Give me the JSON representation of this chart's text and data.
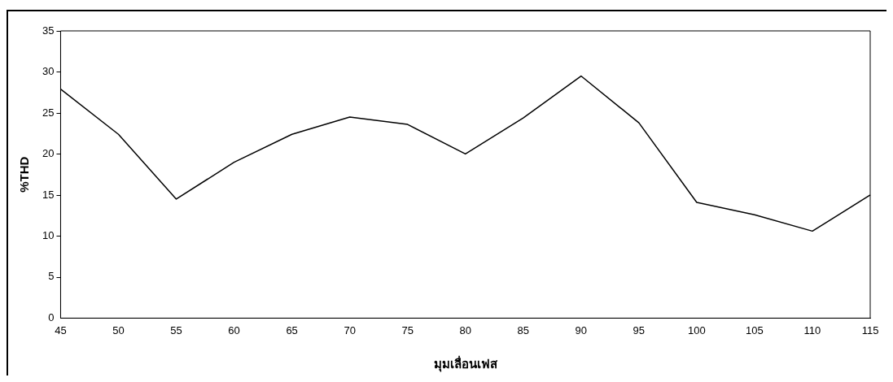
{
  "chart_data": {
    "type": "line",
    "xlabel": "มุมเลื่อนเฟส",
    "ylabel": "%THD",
    "x": [
      45,
      50,
      55,
      60,
      65,
      70,
      75,
      80,
      85,
      90,
      95,
      100,
      105,
      110,
      115
    ],
    "series": [
      {
        "color": "#000000",
        "values": [
          27.9,
          22.4,
          14.5,
          19.0,
          22.4,
          24.5,
          23.6,
          20.0,
          24.4,
          29.5,
          23.8,
          14.1,
          12.6,
          10.6,
          15.0
        ]
      }
    ],
    "xlim": [
      45,
      115
    ],
    "xticks": [
      45,
      50,
      55,
      60,
      65,
      70,
      75,
      80,
      85,
      90,
      95,
      100,
      105,
      110,
      115
    ],
    "ylim": [
      0,
      35
    ],
    "yticks": [
      0,
      5,
      10,
      15,
      20,
      25,
      30,
      35
    ],
    "grid": false,
    "legend": false,
    "marker": "none",
    "line_style": "solid"
  }
}
